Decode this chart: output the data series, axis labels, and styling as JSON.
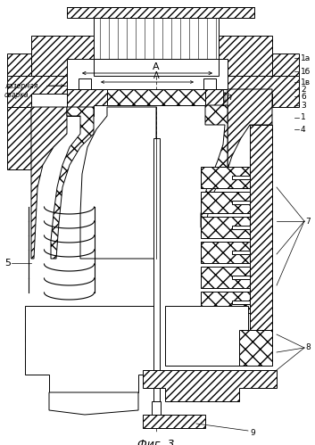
{
  "fig_label": "Фиг. 3",
  "laser_label": "лазерная\nсварка",
  "background_color": "#ffffff",
  "figsize": [
    3.53,
    4.99
  ],
  "dpi": 100,
  "labels": {
    "1a": "1а",
    "1b": "1б",
    "1v": "1в",
    "2": "2",
    "3": "3",
    "1": "1",
    "4": "4",
    "7": "7",
    "5": "5",
    "8": "8",
    "9": "9",
    "6": "6",
    "h": "h",
    "A": "A"
  }
}
